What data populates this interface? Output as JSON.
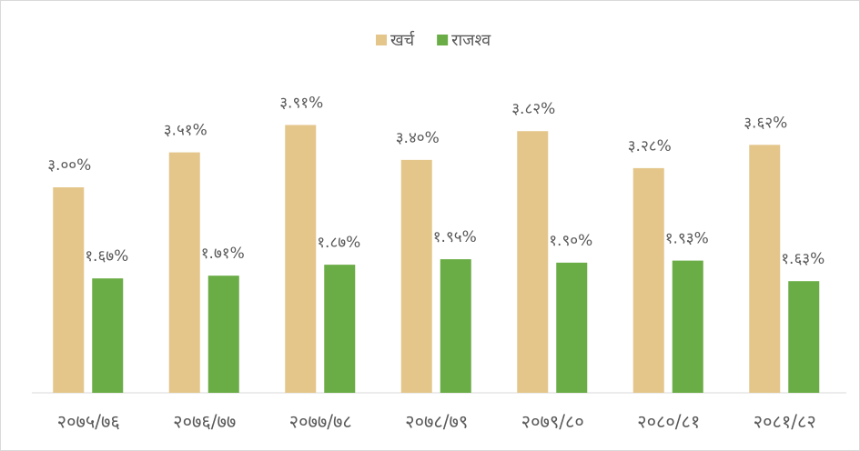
{
  "chart_data": {
    "type": "bar",
    "categories": [
      "२०७५/७६",
      "२०७६/७७",
      "२०७७/७८",
      "२०७८/७९",
      "२०७९/८०",
      "२०८०/८१",
      "२०८१/८२"
    ],
    "series": [
      {
        "name": "खर्च",
        "color": "#e4c68b",
        "values": [
          3.0,
          3.51,
          3.91,
          3.4,
          3.82,
          3.28,
          3.62
        ],
        "value_labels": [
          "३.००%",
          "३.५१%",
          "३.९१%",
          "३.४०%",
          "३.८२%",
          "३.२८%",
          "३.६२%"
        ]
      },
      {
        "name": "राजश्व",
        "color": "#6aac45",
        "values": [
          1.67,
          1.71,
          1.87,
          1.95,
          1.9,
          1.93,
          1.63
        ],
        "value_labels": [
          "१.६७%",
          "१.७१%",
          "१.८७%",
          "१.९५%",
          "१.९०%",
          "१.९३%",
          "१.६३%"
        ]
      }
    ],
    "ylim": [
      0,
      4.5
    ],
    "legend": "top"
  }
}
